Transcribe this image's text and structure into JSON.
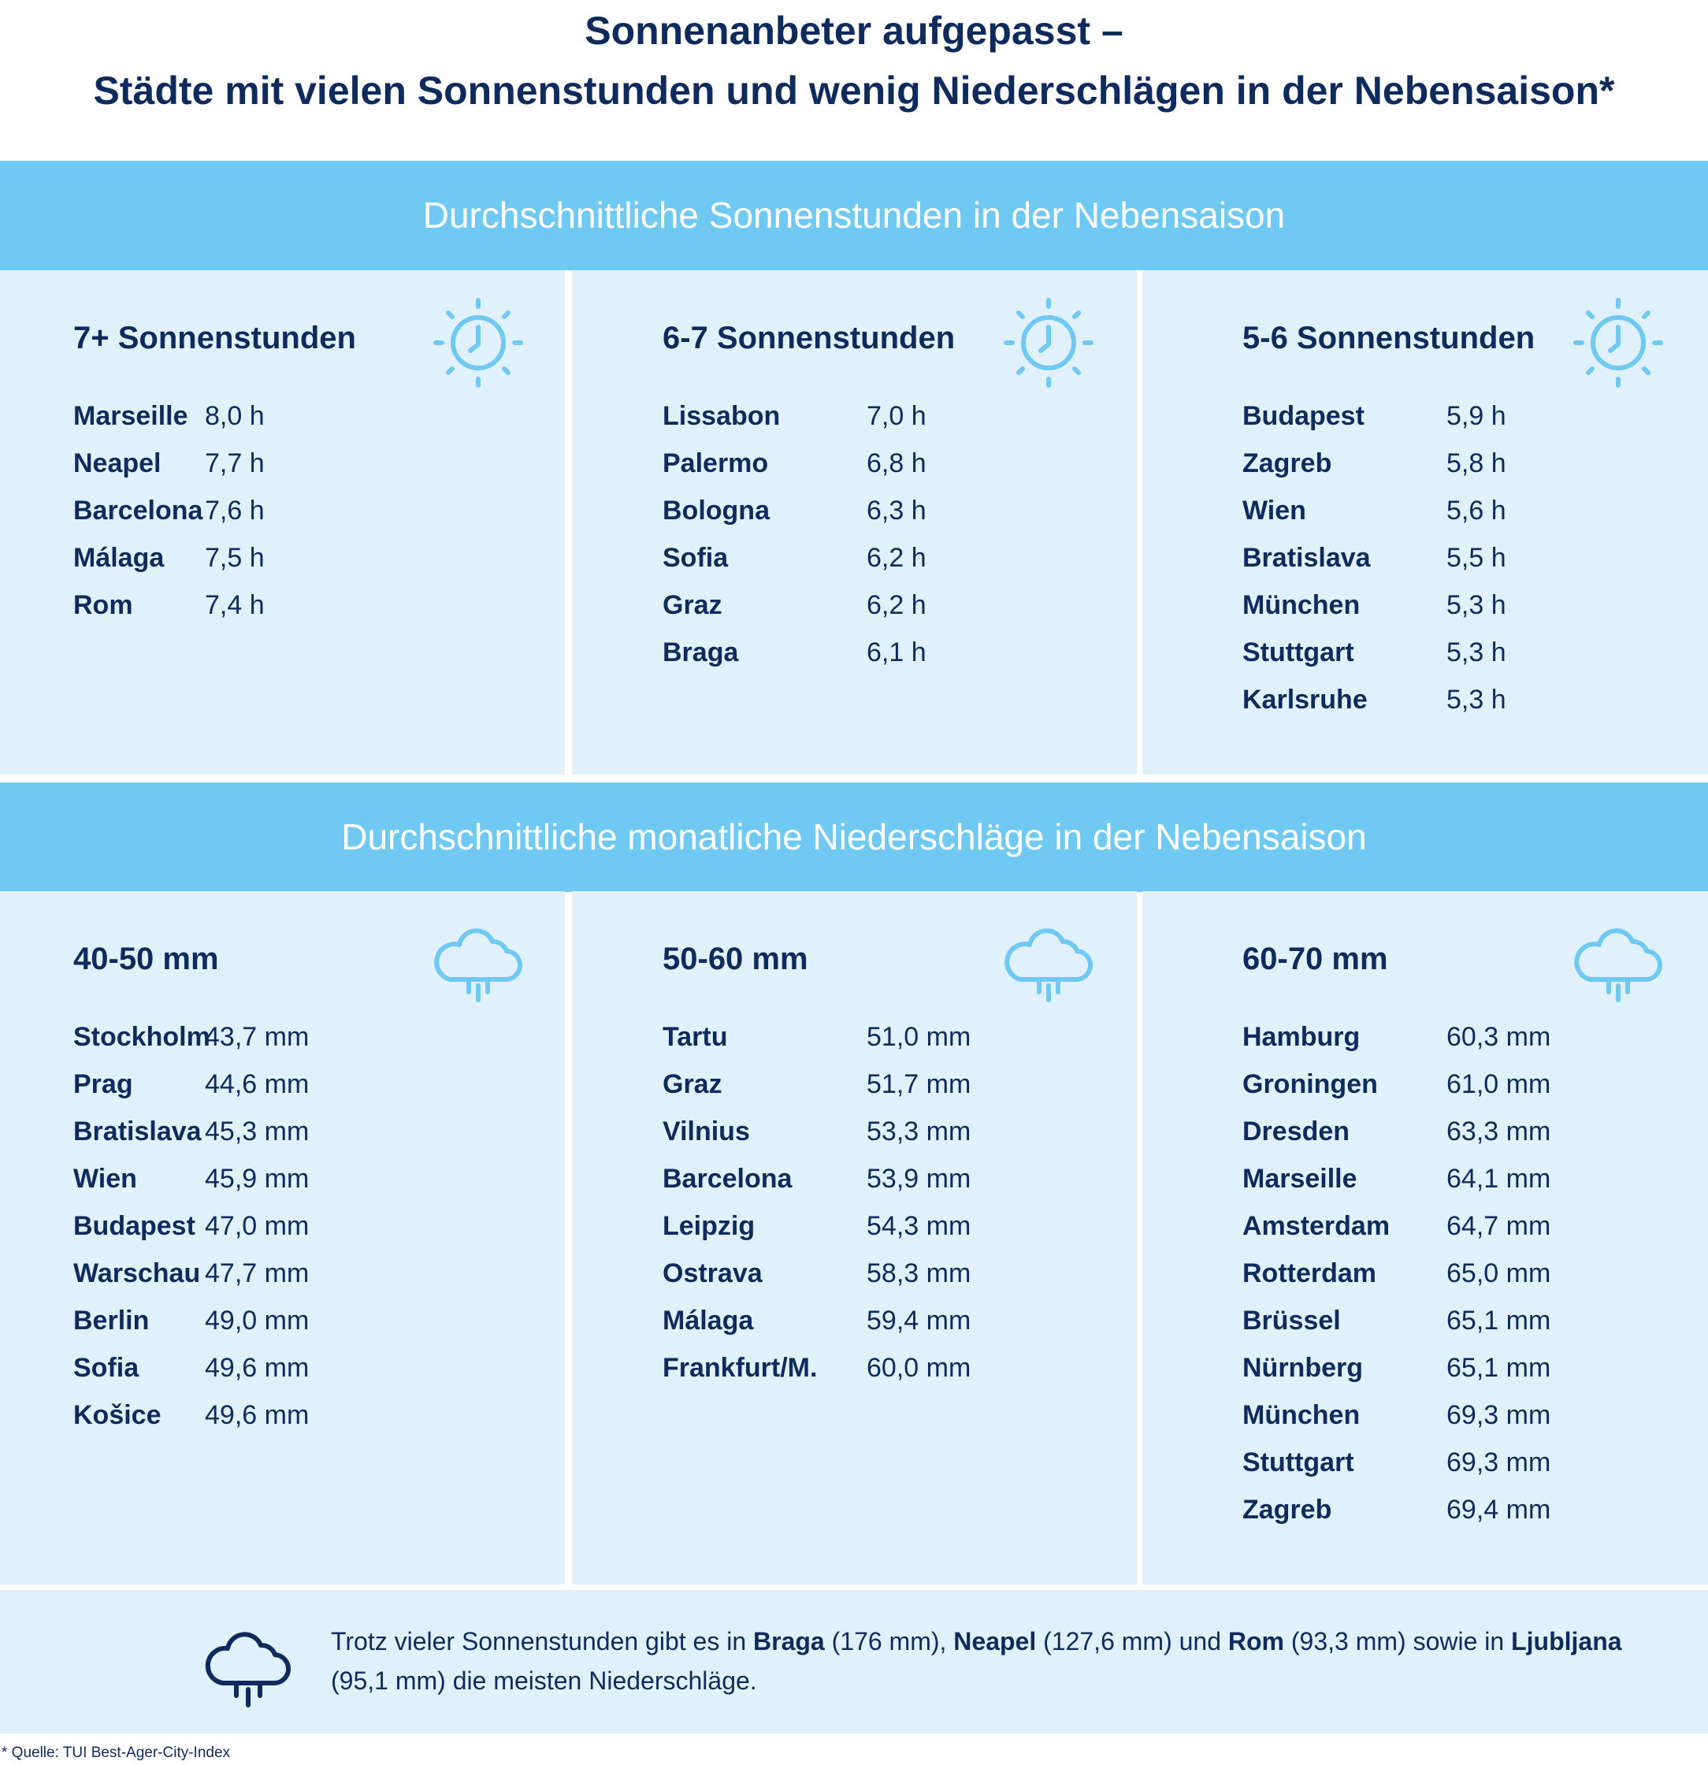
{
  "title": {
    "line1": "Sonnenanbeter aufgepasst –",
    "line2": "Städte mit vielen Sonnenstunden und wenig Niederschlägen in der Nebensaison*"
  },
  "sun": {
    "band": "Durchschnittliche Sonnenstunden in der Nebensaison",
    "icon": "sun-clock-icon",
    "groups": [
      {
        "heading": "7+ Sonnenstunden",
        "rows": [
          [
            "Marseille",
            "8,0 h"
          ],
          [
            "Neapel",
            "7,7 h"
          ],
          [
            "Barcelona",
            "7,6 h"
          ],
          [
            "Málaga",
            "7,5 h"
          ],
          [
            "Rom",
            "7,4 h"
          ]
        ]
      },
      {
        "heading": "6-7 Sonnenstunden",
        "rows": [
          [
            "Lissabon",
            "7,0 h"
          ],
          [
            "Palermo",
            "6,8 h"
          ],
          [
            "Bologna",
            "6,3 h"
          ],
          [
            "Sofia",
            "6,2 h"
          ],
          [
            "Graz",
            "6,2 h"
          ],
          [
            "Braga",
            "6,1 h"
          ]
        ]
      },
      {
        "heading": "5-6 Sonnenstunden",
        "rows": [
          [
            "Budapest",
            "5,9 h"
          ],
          [
            "Zagreb",
            "5,8 h"
          ],
          [
            "Wien",
            "5,6 h"
          ],
          [
            "Bratislava",
            "5,5 h"
          ],
          [
            "München",
            "5,3 h"
          ],
          [
            "Stuttgart",
            "5,3 h"
          ],
          [
            "Karlsruhe",
            "5,3 h"
          ]
        ]
      }
    ]
  },
  "rain": {
    "band": "Durchschnittliche monatliche Niederschläge in der Nebensaison",
    "icon": "rain-cloud-icon",
    "groups": [
      {
        "heading": "40-50 mm",
        "rows": [
          [
            "Stockholm",
            "43,7 mm"
          ],
          [
            "Prag",
            "44,6 mm"
          ],
          [
            "Bratislava",
            "45,3 mm"
          ],
          [
            "Wien",
            "45,9 mm"
          ],
          [
            "Budapest",
            "47,0 mm"
          ],
          [
            "Warschau",
            "47,7 mm"
          ],
          [
            "Berlin",
            "49,0 mm"
          ],
          [
            "Sofia",
            "49,6 mm"
          ],
          [
            "Košice",
            "49,6 mm"
          ]
        ]
      },
      {
        "heading": "50-60 mm",
        "rows": [
          [
            "Tartu",
            "51,0 mm"
          ],
          [
            "Graz",
            "51,7 mm"
          ],
          [
            "Vilnius",
            "53,3 mm"
          ],
          [
            "Barcelona",
            "53,9 mm"
          ],
          [
            "Leipzig",
            "54,3 mm"
          ],
          [
            "Ostrava",
            "58,3 mm"
          ],
          [
            "Málaga",
            "59,4 mm"
          ],
          [
            "Frankfurt/M.",
            "60,0 mm"
          ]
        ]
      },
      {
        "heading": "60-70 mm",
        "rows": [
          [
            "Hamburg",
            "60,3 mm"
          ],
          [
            "Groningen",
            "61,0 mm"
          ],
          [
            "Dresden",
            "63,3 mm"
          ],
          [
            "Marseille",
            "64,1 mm"
          ],
          [
            "Amsterdam",
            "64,7 mm"
          ],
          [
            "Rotterdam",
            "65,0 mm"
          ],
          [
            "Brüssel",
            "65,1 mm"
          ],
          [
            "Nürnberg",
            "65,1 mm"
          ],
          [
            "München",
            "69,3 mm"
          ],
          [
            "Stuttgart",
            "69,3 mm"
          ],
          [
            "Zagreb",
            "69,4 mm"
          ]
        ]
      }
    ]
  },
  "footer": {
    "parts": [
      {
        "t": "Trotz vieler Sonnenstunden gibt es in ",
        "b": false
      },
      {
        "t": "Braga",
        "b": true
      },
      {
        "t": " (176 mm), ",
        "b": false
      },
      {
        "t": "Neapel",
        "b": true
      },
      {
        "t": " (127,6 mm) und ",
        "b": false
      },
      {
        "t": "Rom",
        "b": true
      },
      {
        "t": " (93,3 mm) sowie in ",
        "b": false
      },
      {
        "t": "Ljubljana",
        "b": true
      },
      {
        "t": " (95,1 mm) die meisten Niederschläge.",
        "b": false
      }
    ]
  },
  "source": "* Quelle: TUI Best-Ager-City-Index",
  "colors": {
    "navy": "#0f2a5c",
    "band": "#6fc9f2",
    "panel": "#e1f1fc"
  }
}
